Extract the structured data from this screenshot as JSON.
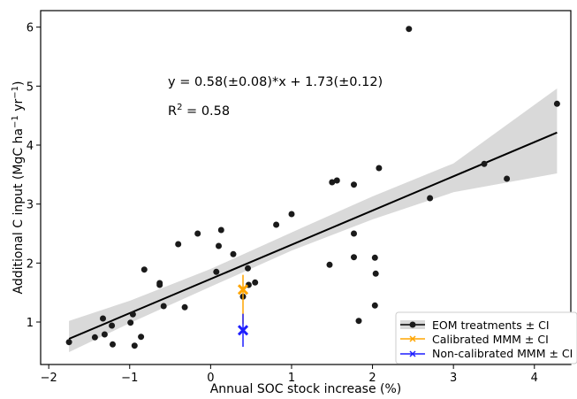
{
  "chart_data": {
    "type": "scatter",
    "xlabel": "Annual SOC stock increase (%)",
    "ylabel_parts": {
      "main": "Additional C input (MgC ha",
      "exp1": "−1",
      "mid": " yr",
      "exp2": "−1",
      "end": ")"
    },
    "xlim": [
      -2.1,
      4.45
    ],
    "ylim": [
      0.28,
      6.28
    ],
    "x_ticks": [
      -2,
      -1,
      0,
      1,
      2,
      3,
      4
    ],
    "x_tick_labels": [
      "−2",
      "−1",
      "0",
      "1",
      "2",
      "3",
      "4"
    ],
    "y_ticks": [
      1,
      2,
      3,
      4,
      5,
      6
    ],
    "y_tick_labels": [
      "1",
      "2",
      "3",
      "4",
      "5",
      "6"
    ],
    "grid": false,
    "equation": "y = 0.58(±0.08)*x + 1.73(±0.12)",
    "r2_prefix": "R",
    "r2_sup": "2",
    "r2_value": " = 0.58",
    "colors": {
      "points": "#1a1a1a",
      "ci_band": "#d9d9d9",
      "regression": "#000000",
      "calibrated": "#ffa500",
      "noncalibrated": "#1f1fff"
    },
    "regression": {
      "slope": 0.58,
      "intercept": 1.73,
      "x_range": [
        -1.75,
        4.28
      ]
    },
    "ci_band": {
      "x": [
        -1.75,
        -1.0,
        0.0,
        1.0,
        2.0,
        3.0,
        4.28
      ],
      "lower": [
        0.49,
        0.98,
        1.6,
        2.21,
        2.74,
        3.2,
        3.52
      ],
      "upper": [
        1.02,
        1.36,
        1.9,
        2.52,
        3.13,
        3.69,
        4.96
      ]
    },
    "series": [
      {
        "name": "EOM treatments ± CI",
        "points": [
          [
            -1.75,
            0.66
          ],
          [
            -1.43,
            0.74
          ],
          [
            -1.33,
            1.06
          ],
          [
            -1.31,
            0.79
          ],
          [
            -1.22,
            0.94
          ],
          [
            -1.21,
            0.62
          ],
          [
            -0.99,
            0.99
          ],
          [
            -0.96,
            1.13
          ],
          [
            -0.94,
            0.6
          ],
          [
            -0.86,
            0.75
          ],
          [
            -0.82,
            1.89
          ],
          [
            -0.63,
            1.66
          ],
          [
            -0.63,
            1.63
          ],
          [
            -0.58,
            1.27
          ],
          [
            -0.4,
            2.32
          ],
          [
            -0.32,
            1.25
          ],
          [
            -0.16,
            2.5
          ],
          [
            0.07,
            1.85
          ],
          [
            0.1,
            2.29
          ],
          [
            0.13,
            2.56
          ],
          [
            0.28,
            2.15
          ],
          [
            0.4,
            1.43
          ],
          [
            0.46,
            1.91
          ],
          [
            0.47,
            1.63
          ],
          [
            0.55,
            1.67
          ],
          [
            0.81,
            2.65
          ],
          [
            1.0,
            2.83
          ],
          [
            1.47,
            1.97
          ],
          [
            1.5,
            3.37
          ],
          [
            1.56,
            3.4
          ],
          [
            1.77,
            2.5
          ],
          [
            1.77,
            2.1
          ],
          [
            1.77,
            3.33
          ],
          [
            1.83,
            1.02
          ],
          [
            2.03,
            1.28
          ],
          [
            2.03,
            2.09
          ],
          [
            2.04,
            1.82
          ],
          [
            2.08,
            3.61
          ],
          [
            2.45,
            5.97
          ],
          [
            2.71,
            3.1
          ],
          [
            3.38,
            3.68
          ],
          [
            3.66,
            3.43
          ],
          [
            4.28,
            4.7
          ]
        ]
      },
      {
        "name": "Calibrated MMM ± CI",
        "point": [
          0.4,
          1.55
        ],
        "ci": [
          0.97,
          1.8
        ]
      },
      {
        "name": "Non-calibrated MMM ± CI",
        "point": [
          0.4,
          0.86
        ],
        "ci": [
          0.58,
          1.14
        ]
      }
    ],
    "legend_position": "lower-right"
  }
}
